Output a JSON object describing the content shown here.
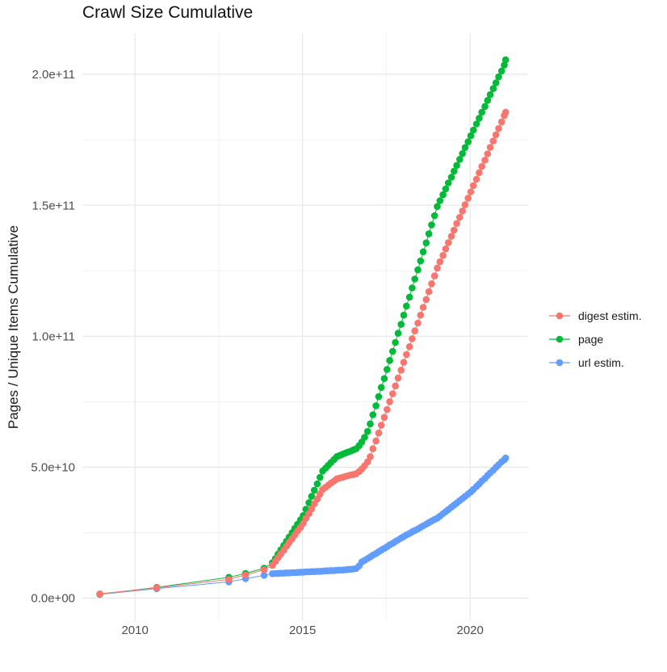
{
  "chart_data": {
    "type": "line",
    "title": "Crawl Size Cumulative",
    "xlabel": "",
    "ylabel": "Pages / Unique Items Cumulative",
    "value_unit": "point values stored in billions (1e9) of pages / unique items",
    "xlim": [
      2008.43,
      2021.73
    ],
    "ylim_e9": [
      -8.8,
      215.7
    ],
    "grid": "major and minor, light grey on white",
    "legend_position": "right",
    "x_ticks": {
      "values": [
        2010,
        2015,
        2020
      ],
      "labels": [
        "2010",
        "2015",
        "2020"
      ]
    },
    "x_minor_ticks": [
      2012.5,
      2017.5
    ],
    "y_ticks": {
      "values_e9": [
        0,
        50,
        100,
        150,
        200
      ],
      "labels": [
        "0.0e+00",
        "5.0e+10",
        "1.0e+11",
        "1.5e+11",
        "2.0e+11"
      ]
    },
    "y_minor_ticks_e9": [
      25,
      75,
      125,
      175
    ],
    "series": [
      {
        "name": "digest estim.",
        "color": "#F8766D",
        "points": [
          [
            2008.95,
            1.6
          ],
          [
            2010.65,
            3.9
          ],
          [
            2012.8,
            7.1
          ],
          [
            2013.3,
            8.8
          ],
          [
            2013.85,
            10.8
          ],
          [
            2014.1,
            12.5
          ],
          [
            2014.19,
            14.0
          ],
          [
            2014.27,
            15.4
          ],
          [
            2014.35,
            16.9
          ],
          [
            2014.44,
            18.3
          ],
          [
            2014.52,
            19.8
          ],
          [
            2014.6,
            21.2
          ],
          [
            2014.69,
            22.7
          ],
          [
            2014.77,
            24.1
          ],
          [
            2014.85,
            25.6
          ],
          [
            2014.94,
            27.0
          ],
          [
            2015.02,
            28.5
          ],
          [
            2015.1,
            30.4
          ],
          [
            2015.19,
            32.2
          ],
          [
            2015.27,
            34.1
          ],
          [
            2015.35,
            36.0
          ],
          [
            2015.44,
            37.8
          ],
          [
            2015.52,
            39.7
          ],
          [
            2015.6,
            41.5
          ],
          [
            2015.69,
            42.3
          ],
          [
            2015.77,
            43.1
          ],
          [
            2015.85,
            43.9
          ],
          [
            2015.94,
            44.7
          ],
          [
            2016.02,
            45.5
          ],
          [
            2016.1,
            45.8
          ],
          [
            2016.19,
            46.1
          ],
          [
            2016.27,
            46.4
          ],
          [
            2016.35,
            46.7
          ],
          [
            2016.44,
            47.0
          ],
          [
            2016.52,
            47.2
          ],
          [
            2016.6,
            47.5
          ],
          [
            2016.69,
            48.3
          ],
          [
            2016.77,
            49.3
          ],
          [
            2016.85,
            50.5
          ],
          [
            2016.94,
            52.0
          ],
          [
            2017.02,
            54.0
          ],
          [
            2017.1,
            57.0
          ],
          [
            2017.19,
            60.0
          ],
          [
            2017.27,
            63.0
          ],
          [
            2017.35,
            66.0
          ],
          [
            2017.44,
            69.0
          ],
          [
            2017.52,
            72.0
          ],
          [
            2017.6,
            75.0
          ],
          [
            2017.69,
            78.0
          ],
          [
            2017.77,
            81.0
          ],
          [
            2017.85,
            84.0
          ],
          [
            2017.94,
            87.0
          ],
          [
            2018.02,
            90.0
          ],
          [
            2018.1,
            93.0
          ],
          [
            2018.19,
            96.0
          ],
          [
            2018.27,
            99.0
          ],
          [
            2018.35,
            102.0
          ],
          [
            2018.44,
            105.0
          ],
          [
            2018.52,
            108.0
          ],
          [
            2018.6,
            111.0
          ],
          [
            2018.69,
            114.0
          ],
          [
            2018.77,
            117.0
          ],
          [
            2018.85,
            120.0
          ],
          [
            2018.94,
            123.0
          ],
          [
            2019.02,
            126.0
          ],
          [
            2019.1,
            128.4
          ],
          [
            2019.19,
            130.8
          ],
          [
            2019.27,
            133.3
          ],
          [
            2019.35,
            135.7
          ],
          [
            2019.44,
            138.1
          ],
          [
            2019.52,
            140.5
          ],
          [
            2019.6,
            143.0
          ],
          [
            2019.69,
            145.4
          ],
          [
            2019.77,
            147.8
          ],
          [
            2019.85,
            150.2
          ],
          [
            2019.94,
            152.7
          ],
          [
            2020.02,
            155.1
          ],
          [
            2020.1,
            157.5
          ],
          [
            2020.19,
            159.9
          ],
          [
            2020.27,
            162.4
          ],
          [
            2020.35,
            164.8
          ],
          [
            2020.44,
            167.2
          ],
          [
            2020.52,
            169.6
          ],
          [
            2020.6,
            172.1
          ],
          [
            2020.69,
            174.5
          ],
          [
            2020.77,
            176.9
          ],
          [
            2020.85,
            179.3
          ],
          [
            2020.94,
            181.8
          ],
          [
            2021.02,
            184.2
          ],
          [
            2021.06,
            185.5
          ]
        ]
      },
      {
        "name": "page",
        "color": "#00BA38",
        "points": [
          [
            2008.95,
            1.5
          ],
          [
            2010.65,
            4.1
          ],
          [
            2012.8,
            7.9
          ],
          [
            2013.3,
            9.4
          ],
          [
            2013.85,
            11.4
          ],
          [
            2014.1,
            13.5
          ],
          [
            2014.19,
            15.1
          ],
          [
            2014.27,
            16.8
          ],
          [
            2014.35,
            18.4
          ],
          [
            2014.44,
            20.1
          ],
          [
            2014.52,
            21.7
          ],
          [
            2014.6,
            23.3
          ],
          [
            2014.69,
            25.0
          ],
          [
            2014.77,
            26.6
          ],
          [
            2014.85,
            28.2
          ],
          [
            2014.94,
            29.9
          ],
          [
            2015.02,
            31.5
          ],
          [
            2015.1,
            33.9
          ],
          [
            2015.19,
            36.4
          ],
          [
            2015.27,
            38.8
          ],
          [
            2015.35,
            41.2
          ],
          [
            2015.44,
            43.6
          ],
          [
            2015.52,
            46.1
          ],
          [
            2015.6,
            48.5
          ],
          [
            2015.69,
            49.6
          ],
          [
            2015.77,
            50.7
          ],
          [
            2015.85,
            51.8
          ],
          [
            2015.94,
            52.9
          ],
          [
            2016.02,
            54.0
          ],
          [
            2016.1,
            54.4
          ],
          [
            2016.19,
            54.9
          ],
          [
            2016.27,
            55.3
          ],
          [
            2016.35,
            55.7
          ],
          [
            2016.44,
            56.1
          ],
          [
            2016.52,
            56.6
          ],
          [
            2016.6,
            57.0
          ],
          [
            2016.69,
            58.2
          ],
          [
            2016.77,
            59.6
          ],
          [
            2016.85,
            61.4
          ],
          [
            2016.94,
            63.6
          ],
          [
            2017.02,
            66.5
          ],
          [
            2017.1,
            70.0
          ],
          [
            2017.19,
            73.4
          ],
          [
            2017.27,
            76.9
          ],
          [
            2017.35,
            80.4
          ],
          [
            2017.44,
            83.8
          ],
          [
            2017.52,
            87.3
          ],
          [
            2017.6,
            90.7
          ],
          [
            2017.69,
            94.2
          ],
          [
            2017.77,
            97.6
          ],
          [
            2017.85,
            101.1
          ],
          [
            2017.94,
            104.5
          ],
          [
            2018.02,
            108.0
          ],
          [
            2018.1,
            111.5
          ],
          [
            2018.19,
            114.9
          ],
          [
            2018.27,
            118.4
          ],
          [
            2018.35,
            121.8
          ],
          [
            2018.44,
            125.3
          ],
          [
            2018.52,
            128.7
          ],
          [
            2018.6,
            132.2
          ],
          [
            2018.69,
            135.6
          ],
          [
            2018.77,
            139.1
          ],
          [
            2018.85,
            142.5
          ],
          [
            2018.94,
            146.0
          ],
          [
            2019.02,
            149.5
          ],
          [
            2019.1,
            151.7
          ],
          [
            2019.19,
            154.0
          ],
          [
            2019.27,
            156.2
          ],
          [
            2019.35,
            158.5
          ],
          [
            2019.44,
            160.7
          ],
          [
            2019.52,
            163.0
          ],
          [
            2019.6,
            165.2
          ],
          [
            2019.69,
            167.5
          ],
          [
            2019.77,
            169.7
          ],
          [
            2019.85,
            172.0
          ],
          [
            2019.94,
            174.2
          ],
          [
            2020.02,
            176.5
          ],
          [
            2020.1,
            178.7
          ],
          [
            2020.19,
            181.0
          ],
          [
            2020.27,
            183.2
          ],
          [
            2020.35,
            185.5
          ],
          [
            2020.44,
            187.7
          ],
          [
            2020.52,
            190.0
          ],
          [
            2020.6,
            192.2
          ],
          [
            2020.69,
            194.5
          ],
          [
            2020.77,
            196.7
          ],
          [
            2020.85,
            199.0
          ],
          [
            2020.94,
            201.2
          ],
          [
            2021.02,
            203.5
          ],
          [
            2021.06,
            205.5
          ]
        ]
      },
      {
        "name": "url estim.",
        "color": "#619CFF",
        "points": [
          [
            2008.95,
            1.4
          ],
          [
            2010.65,
            3.6
          ],
          [
            2012.8,
            6.2
          ],
          [
            2013.3,
            7.4
          ],
          [
            2013.85,
            8.7
          ],
          [
            2014.1,
            9.3
          ],
          [
            2014.19,
            9.4
          ],
          [
            2014.27,
            9.4
          ],
          [
            2014.35,
            9.5
          ],
          [
            2014.44,
            9.5
          ],
          [
            2014.52,
            9.6
          ],
          [
            2014.6,
            9.6
          ],
          [
            2014.69,
            9.7
          ],
          [
            2014.77,
            9.7
          ],
          [
            2014.85,
            9.8
          ],
          [
            2014.94,
            9.9
          ],
          [
            2015.02,
            9.9
          ],
          [
            2015.1,
            10.0
          ],
          [
            2015.19,
            10.0
          ],
          [
            2015.27,
            10.1
          ],
          [
            2015.35,
            10.1
          ],
          [
            2015.44,
            10.2
          ],
          [
            2015.52,
            10.2
          ],
          [
            2015.6,
            10.3
          ],
          [
            2015.69,
            10.4
          ],
          [
            2015.77,
            10.4
          ],
          [
            2015.85,
            10.5
          ],
          [
            2015.94,
            10.5
          ],
          [
            2016.02,
            10.6
          ],
          [
            2016.1,
            10.7
          ],
          [
            2016.19,
            10.7
          ],
          [
            2016.27,
            10.8
          ],
          [
            2016.35,
            10.9
          ],
          [
            2016.44,
            11.0
          ],
          [
            2016.52,
            11.1
          ],
          [
            2016.6,
            11.3
          ],
          [
            2016.69,
            12.3
          ],
          [
            2016.77,
            13.8
          ],
          [
            2016.85,
            14.4
          ],
          [
            2016.94,
            15.1
          ],
          [
            2017.02,
            15.7
          ],
          [
            2017.1,
            16.4
          ],
          [
            2017.19,
            17.0
          ],
          [
            2017.27,
            17.7
          ],
          [
            2017.35,
            18.3
          ],
          [
            2017.44,
            19.0
          ],
          [
            2017.52,
            19.6
          ],
          [
            2017.6,
            20.3
          ],
          [
            2017.69,
            20.9
          ],
          [
            2017.77,
            21.6
          ],
          [
            2017.85,
            22.2
          ],
          [
            2017.94,
            22.9
          ],
          [
            2018.02,
            23.5
          ],
          [
            2018.1,
            24.1
          ],
          [
            2018.19,
            24.7
          ],
          [
            2018.27,
            25.3
          ],
          [
            2018.35,
            25.8
          ],
          [
            2018.44,
            26.4
          ],
          [
            2018.52,
            27.0
          ],
          [
            2018.6,
            27.6
          ],
          [
            2018.69,
            28.2
          ],
          [
            2018.77,
            28.8
          ],
          [
            2018.85,
            29.4
          ],
          [
            2018.94,
            30.0
          ],
          [
            2019.02,
            30.5
          ],
          [
            2019.1,
            31.3
          ],
          [
            2019.19,
            32.2
          ],
          [
            2019.27,
            33.0
          ],
          [
            2019.35,
            33.8
          ],
          [
            2019.44,
            34.7
          ],
          [
            2019.52,
            35.5
          ],
          [
            2019.6,
            36.3
          ],
          [
            2019.69,
            37.2
          ],
          [
            2019.77,
            38.0
          ],
          [
            2019.85,
            38.8
          ],
          [
            2019.94,
            39.7
          ],
          [
            2020.02,
            40.5
          ],
          [
            2020.1,
            41.5
          ],
          [
            2020.19,
            42.6
          ],
          [
            2020.27,
            43.6
          ],
          [
            2020.35,
            44.7
          ],
          [
            2020.44,
            45.7
          ],
          [
            2020.52,
            46.8
          ],
          [
            2020.6,
            47.8
          ],
          [
            2020.69,
            48.8
          ],
          [
            2020.77,
            49.9
          ],
          [
            2020.85,
            50.9
          ],
          [
            2020.94,
            52.0
          ],
          [
            2021.02,
            52.8
          ],
          [
            2021.06,
            53.5
          ]
        ]
      }
    ]
  }
}
